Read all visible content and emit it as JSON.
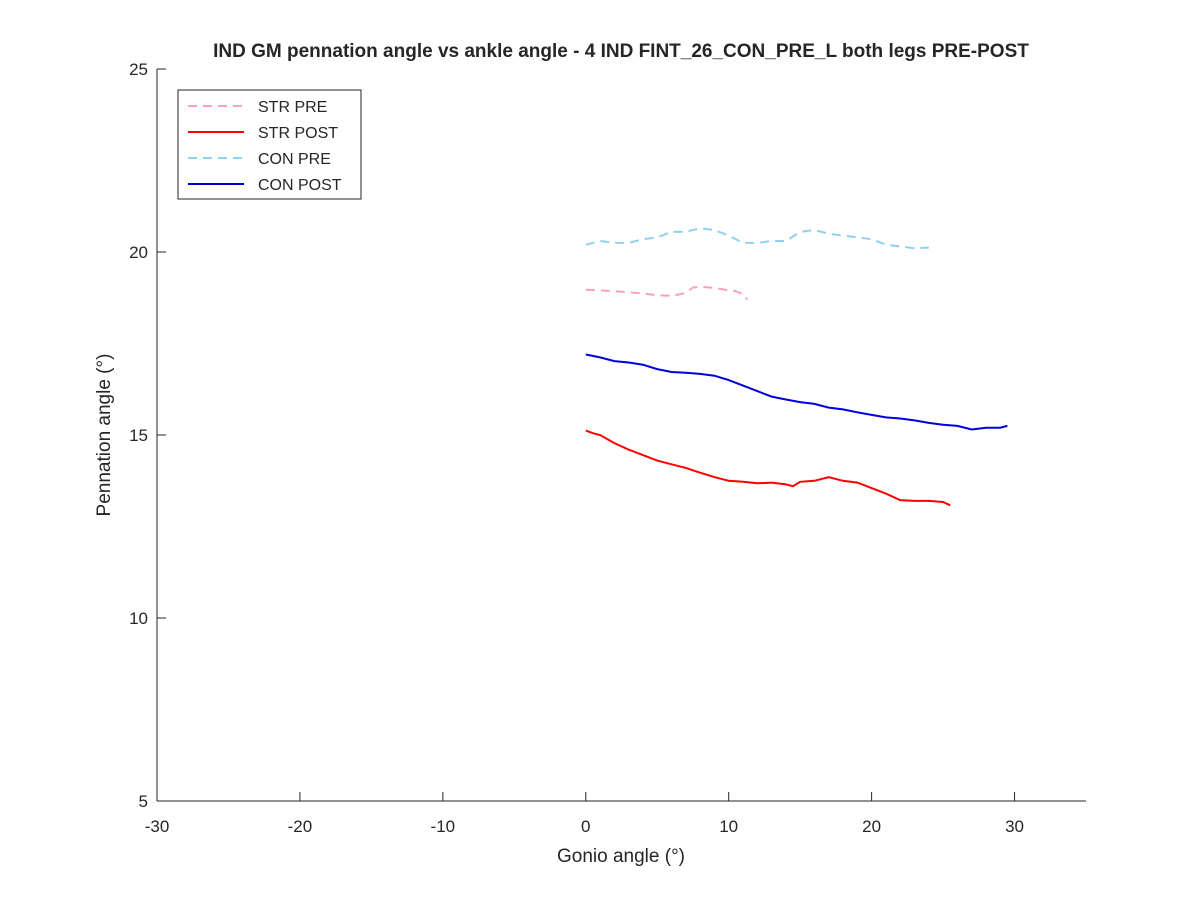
{
  "chart_data": {
    "type": "line",
    "title": "IND GM pennation angle vs ankle angle - 4 IND FINT_26_CON_PRE_L both legs PRE-POST",
    "xlabel": "Gonio angle (°)",
    "ylabel": "Pennation angle (°)",
    "xlim": [
      -30,
      35
    ],
    "ylim": [
      5,
      25
    ],
    "xticks": [
      -30,
      -20,
      -10,
      0,
      10,
      20,
      30
    ],
    "yticks": [
      5,
      10,
      15,
      20,
      25
    ],
    "grid": false,
    "legend_position": "top-left",
    "series": [
      {
        "name": "STR PRE",
        "color": "#ff9ec4",
        "style": "dashed",
        "x": [
          0,
          1,
          2,
          3,
          4,
          5,
          6,
          7,
          7.5,
          8,
          9,
          10,
          10.5,
          11,
          11.3
        ],
        "y": [
          18.97,
          18.95,
          18.93,
          18.9,
          18.87,
          18.82,
          18.8,
          18.88,
          19.03,
          19.05,
          19.02,
          18.95,
          18.93,
          18.85,
          18.7
        ]
      },
      {
        "name": "STR POST",
        "color": "#ff0000",
        "style": "solid",
        "x": [
          0,
          0.5,
          1,
          2,
          3,
          4,
          5,
          6,
          7,
          8,
          9,
          10,
          11,
          12,
          13,
          14,
          14.5,
          15,
          16,
          17,
          18,
          19,
          20,
          21,
          22,
          23,
          24,
          25,
          25.5
        ],
        "y": [
          15.12,
          15.05,
          15.0,
          14.78,
          14.6,
          14.45,
          14.3,
          14.2,
          14.1,
          13.97,
          13.85,
          13.75,
          13.72,
          13.68,
          13.7,
          13.65,
          13.6,
          13.72,
          13.75,
          13.85,
          13.75,
          13.7,
          13.55,
          13.4,
          13.22,
          13.2,
          13.2,
          13.17,
          13.08
        ]
      },
      {
        "name": "CON PRE",
        "color": "#8fd1f0",
        "style": "dashed",
        "x": [
          0,
          1,
          2,
          3,
          4,
          5,
          6,
          7,
          8,
          9,
          10,
          11,
          12,
          13,
          14,
          15,
          16,
          17,
          18,
          19,
          20,
          21,
          22,
          23,
          24
        ],
        "y": [
          20.2,
          20.3,
          20.25,
          20.25,
          20.35,
          20.4,
          20.55,
          20.55,
          20.65,
          20.6,
          20.45,
          20.25,
          20.25,
          20.3,
          20.3,
          20.55,
          20.6,
          20.5,
          20.45,
          20.4,
          20.35,
          20.2,
          20.15,
          20.1,
          20.12
        ]
      },
      {
        "name": "CON POST",
        "color": "#0000dd",
        "style": "solid",
        "x": [
          0,
          1,
          2,
          3,
          4,
          5,
          6,
          7,
          8,
          9,
          10,
          11,
          12,
          13,
          14,
          15,
          16,
          17,
          18,
          19,
          20,
          21,
          22,
          23,
          24,
          25,
          26,
          27,
          28,
          29,
          29.5
        ],
        "y": [
          17.2,
          17.12,
          17.02,
          16.98,
          16.92,
          16.8,
          16.72,
          16.7,
          16.67,
          16.62,
          16.5,
          16.35,
          16.2,
          16.05,
          15.97,
          15.9,
          15.85,
          15.75,
          15.7,
          15.62,
          15.55,
          15.48,
          15.45,
          15.4,
          15.33,
          15.28,
          15.25,
          15.15,
          15.2,
          15.2,
          15.25
        ]
      }
    ]
  }
}
